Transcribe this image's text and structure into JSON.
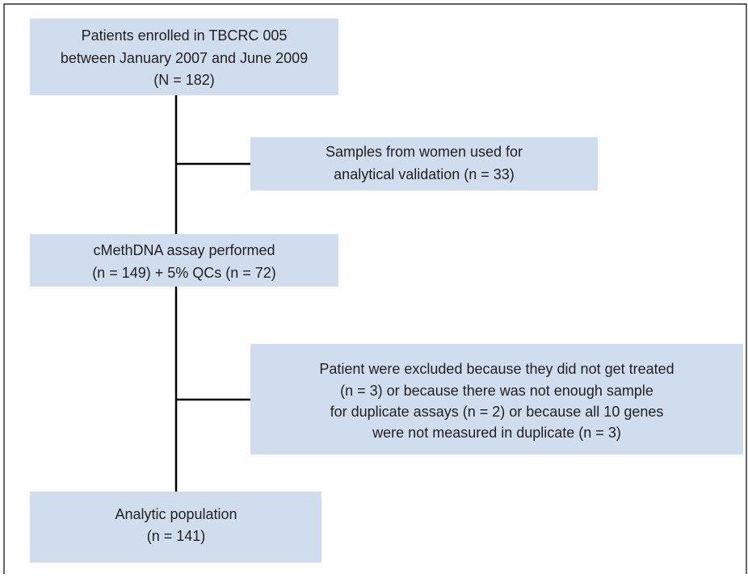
{
  "nodes": [
    {
      "lines": [
        "Patients enrolled in TBCRC 005",
        "between January 2007 and June 2009",
        "(N = 182)"
      ]
    },
    {
      "lines": [
        "Samples from women used for",
        "analytical validation (n = 33)"
      ]
    },
    {
      "lines": [
        "cMethDNA assay performed",
        "(n = 149) + 5% QCs (n = 72)"
      ]
    },
    {
      "lines": [
        "Patient were excluded because they did not get treated",
        "(n = 3) or because there was not enough sample",
        "for duplicate assays (n = 2) or because all 10 genes",
        "were not measured in duplicate (n = 3)"
      ]
    },
    {
      "lines": [
        "Analytic population",
        "(n = 141)"
      ]
    }
  ]
}
